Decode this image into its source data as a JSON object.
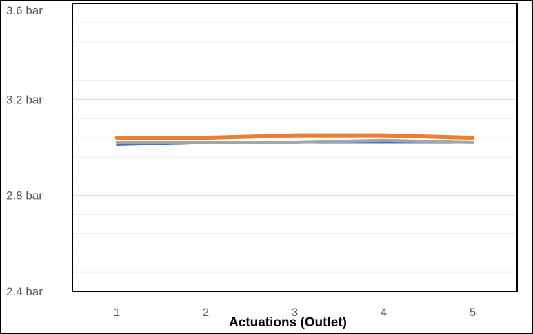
{
  "chart_data": {
    "type": "line",
    "title": "",
    "xlabel": "Actuations (Outlet)",
    "ylabel": "",
    "x": [
      1,
      2,
      3,
      4,
      5
    ],
    "x_tick_labels": [
      "1",
      "2",
      "3",
      "4",
      "5"
    ],
    "y_tick_labels": [
      "2.4 bar",
      "2.8 bar",
      "3.2 bar",
      "3.6 bar"
    ],
    "y_ticks": [
      2.4,
      2.8,
      3.2,
      3.6
    ],
    "ylim": [
      2.4,
      3.6
    ],
    "minor_gridlines": true,
    "legend": "none",
    "series": [
      {
        "values": [
          3.01,
          3.02,
          3.02,
          3.02,
          3.02
        ],
        "color": "#4472C4"
      },
      {
        "values": [
          3.04,
          3.04,
          3.05,
          3.05,
          3.04
        ],
        "color": "#ED7D31"
      },
      {
        "values": [
          3.02,
          3.02,
          3.02,
          3.03,
          3.02
        ],
        "color": "#A5A5A5"
      }
    ]
  }
}
